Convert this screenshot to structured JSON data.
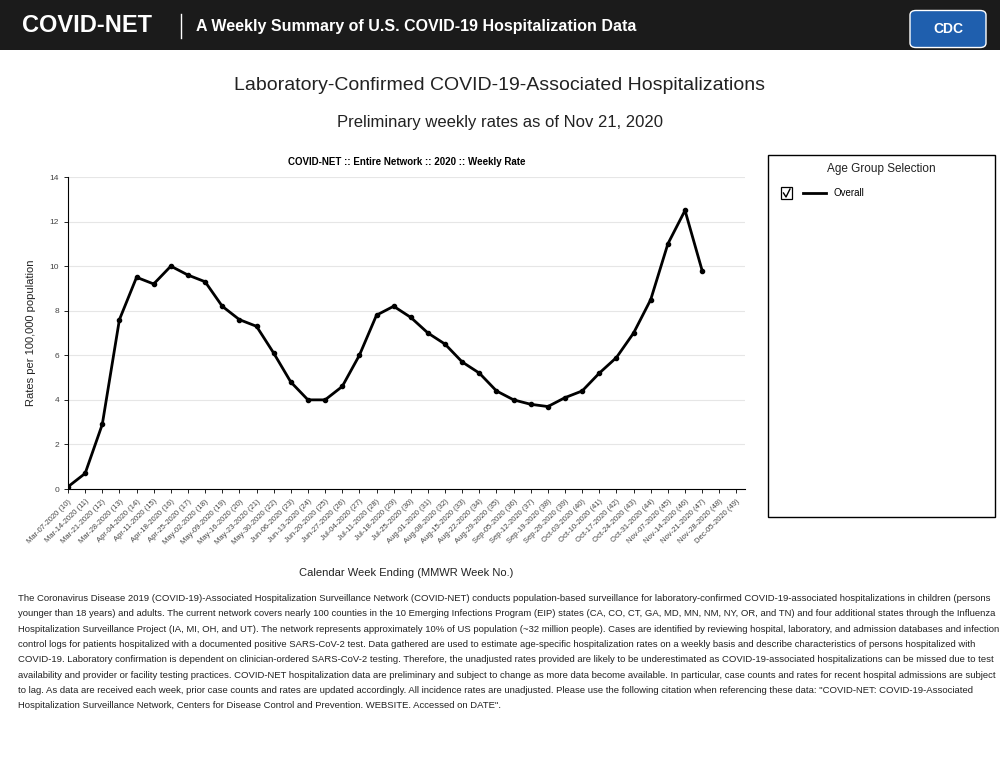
{
  "header": {
    "title": "COVID-NET",
    "subtitle": "A Weekly Summary of U.S. COVID-19 Hospitalization Data",
    "logo": "CDC"
  },
  "page_title": "Laboratory-Confirmed COVID-19-Associated Hospitalizations",
  "page_subtitle": "Preliminary weekly rates as of Nov 21, 2020",
  "legend_title": "Age Group Selection",
  "chart_data": {
    "type": "line",
    "title": "COVID-NET :: Entire Network :: 2020 :: Weekly Rate",
    "x_label": "Calendar Week Ending (MMWR Week No.)",
    "y_label": "Rates per 100,000 population",
    "categories": [
      "Mar-07-2020 (10)",
      "Mar-14-2020 (11)",
      "Mar-21-2020 (12)",
      "Mar-28-2020 (13)",
      "Apr-04-2020 (14)",
      "Apr-11-2020 (15)",
      "Apr-18-2020 (16)",
      "Apr-25-2020 (17)",
      "May-02-2020 (18)",
      "May-09-2020 (19)",
      "May-16-2020 (20)",
      "May-23-2020 (21)",
      "May-30-2020 (22)",
      "Jun-06-2020 (23)",
      "Jun-13-2020 (24)",
      "Jun-20-2020 (25)",
      "Jun-27-2020 (26)",
      "Jul-04-2020 (27)",
      "Jul-11-2020 (28)",
      "Jul-18-2020 (29)",
      "Jul-25-2020 (30)",
      "Aug-01-2020 (31)",
      "Aug-08-2020 (32)",
      "Aug-15-2020 (33)",
      "Aug-22-2020 (34)",
      "Aug-29-2020 (35)",
      "Sep-05-2020 (36)",
      "Sep-12-2020 (37)",
      "Sep-19-2020 (38)",
      "Sep-26-2020 (39)",
      "Oct-03-2020 (40)",
      "Oct-10-2020 (41)",
      "Oct-17-2020 (42)",
      "Oct-24-2020 (43)",
      "Oct-31-2020 (44)",
      "Nov-07-2020 (45)",
      "Nov-14-2020 (46)",
      "Nov-21-2020 (47)",
      "Nov-28-2020 (48)",
      "Dec-05-2020 (49)"
    ],
    "series": [
      {
        "name": "Overall",
        "color": "#000000",
        "marker": "o",
        "line_style": "solid",
        "values": [
          0.1,
          0.7,
          2.9,
          7.6,
          9.5,
          9.2,
          10.0,
          9.6,
          9.3,
          8.2,
          7.6,
          7.3,
          6.1,
          4.8,
          4.0,
          4.0,
          4.6,
          6.0,
          7.8,
          8.2,
          7.7,
          7.0,
          6.5,
          5.7,
          5.2,
          4.4,
          4.0,
          3.8,
          3.7,
          4.1,
          4.4,
          5.2,
          5.9,
          7.0,
          8.5,
          11.0,
          12.5,
          9.8,
          null,
          null
        ]
      }
    ],
    "ylim": [
      0,
      14
    ],
    "yticks": [
      0,
      2,
      4,
      6,
      8,
      10,
      12,
      14
    ],
    "grid": true
  },
  "footnote": "The Coronavirus Disease 2019 (COVID-19)-Associated Hospitalization Surveillance Network (COVID-NET) conducts population-based surveillance for laboratory-confirmed COVID-19-associated hospitalizations in children (persons younger than 18 years) and adults. The current network covers nearly 100 counties in the 10 Emerging Infections Program (EIP) states (CA, CO, CT, GA, MD, MN, NM, NY, OR, and TN) and four additional states through the Influenza Hospitalization Surveillance Project (IA, MI, OH, and UT). The network represents approximately 10% of US population (~32 million people). Cases are identified by reviewing hospital, laboratory, and admission databases and infection control logs for patients hospitalized with a documented positive SARS-CoV-2 test. Data gathered are used to estimate age-specific hospitalization rates on a weekly basis and describe characteristics of persons hospitalized with COVID-19. Laboratory confirmation is dependent on clinician-ordered SARS-CoV-2 testing. Therefore, the unadjusted rates provided are likely to be underestimated as COVID-19-associated hospitalizations can be missed due to test availability and provider or facility testing practices. COVID-NET hospitalization data are preliminary and subject to change as more data become available. In particular, case counts and rates for recent hospital admissions are subject to lag. As data are received each week, prior case counts and rates are updated accordingly. All incidence rates are unadjusted. Please use the following citation when referencing these data: \"COVID-NET: COVID-19-Associated Hospitalization Surveillance Network, Centers for Disease Control and Prevention. WEBSITE. Accessed on DATE\"."
}
